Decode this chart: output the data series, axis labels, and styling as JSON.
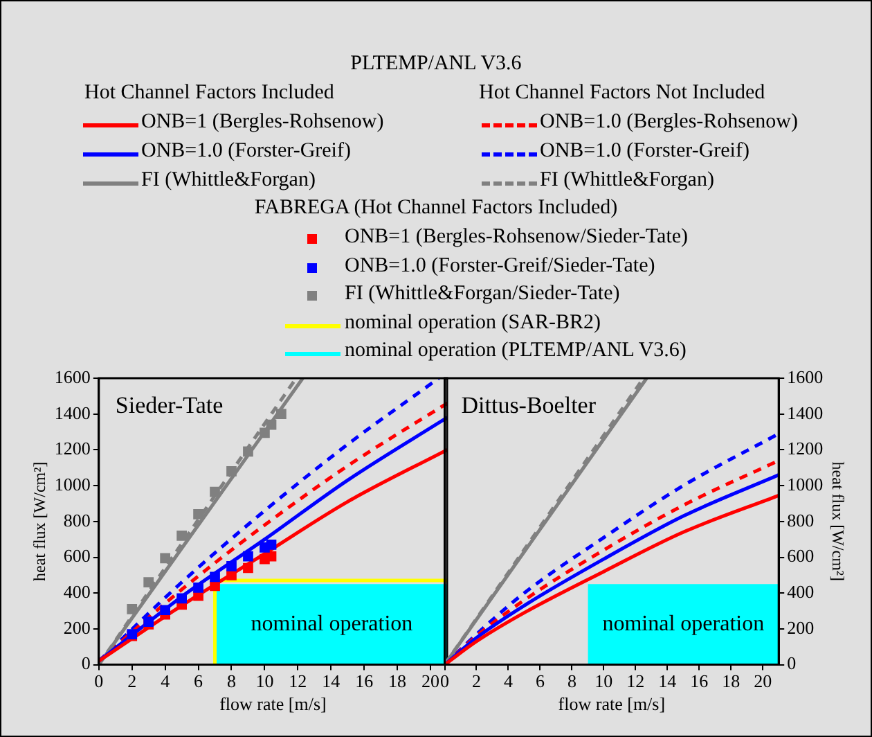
{
  "chart_data": [
    {
      "type": "line",
      "title": "PLTEMP/ANL V3.6",
      "subtitle": "Sieder-Tate",
      "xlabel": "flow rate [m/s]",
      "ylabel": "heat flux [W/cm²]",
      "xlim": [
        0,
        21
      ],
      "xticks": [
        0,
        2,
        4,
        6,
        8,
        10,
        12,
        14,
        16,
        18,
        20
      ],
      "ylim": [
        0,
        1600
      ],
      "yticks": [
        0,
        200,
        400,
        600,
        800,
        1000,
        1200,
        1400,
        1600
      ],
      "legend": "top",
      "grid": false,
      "annotations": [
        "Hot Channel Factors Included",
        "Hot Channel Factors Not Included",
        "FABREGA (Hot Channel Factors Included)",
        "nominal operation"
      ],
      "series": [
        {
          "name": "ONB=1 (Bergles-Rohsenow)",
          "color": "#ff0000",
          "line_style": "solid",
          "marker": "none",
          "x": [
            0,
            5,
            10,
            15,
            21
          ],
          "values": [
            20,
            330,
            620,
            910,
            1200
          ]
        },
        {
          "name": "ONB=1.0 (Forster-Greif)",
          "color": "#0000ff",
          "line_style": "solid",
          "marker": "none",
          "x": [
            0,
            5,
            10,
            15,
            21
          ],
          "values": [
            20,
            380,
            700,
            1030,
            1380
          ]
        },
        {
          "name": "FI (Whittle&Forgan)",
          "color": "#808080",
          "line_style": "solid",
          "marker": "none",
          "x": [
            0,
            6,
            12.3
          ],
          "values": [
            0,
            780,
            1600
          ]
        },
        {
          "name": "ONB=1.0 (Bergles-Rohsenow)",
          "color": "#ff0000",
          "line_style": "dashed",
          "marker": "none",
          "x": [
            0,
            5,
            10,
            15,
            21
          ],
          "values": [
            20,
            420,
            780,
            1110,
            1460
          ]
        },
        {
          "name": "ONB=1.0 (Forster-Greif)",
          "color": "#0000ff",
          "line_style": "dashed",
          "marker": "none",
          "x": [
            0,
            5,
            10,
            15,
            20.5
          ],
          "values": [
            20,
            460,
            860,
            1230,
            1600
          ]
        },
        {
          "name": "FI (Whittle&Forgan)",
          "color": "#808080",
          "line_style": "dashed",
          "marker": "none",
          "x": [
            0,
            6,
            11.9
          ],
          "values": [
            0,
            810,
            1600
          ]
        },
        {
          "name": "ONB=1 (Bergles-Rohsenow/Sieder-Tate)",
          "type": "scatter",
          "color": "#ff0000",
          "marker": "square",
          "x": [
            2,
            3,
            4,
            5,
            6,
            7,
            8,
            9,
            10,
            10.4
          ],
          "values": [
            160,
            225,
            280,
            335,
            385,
            440,
            500,
            540,
            590,
            605
          ]
        },
        {
          "name": "ONB=1.0 (Forster-Greif/Sieder-Tate)",
          "type": "scatter",
          "color": "#0000ff",
          "marker": "square",
          "x": [
            2,
            3,
            4,
            5,
            6,
            7,
            8,
            9,
            10,
            10.4
          ],
          "values": [
            170,
            240,
            305,
            370,
            430,
            490,
            550,
            605,
            655,
            670
          ]
        },
        {
          "name": "FI (Whittle&Forgan/Sieder-Tate)",
          "type": "scatter",
          "color": "#808080",
          "marker": "square",
          "x": [
            2,
            3,
            4,
            5,
            6,
            7,
            8,
            9,
            10,
            10.4,
            11
          ],
          "values": [
            310,
            460,
            595,
            720,
            840,
            965,
            1080,
            1190,
            1295,
            1340,
            1400
          ]
        },
        {
          "name": "nominal operation (SAR-BR2)",
          "color": "#ffff00",
          "line_style": "solid",
          "marker": "none",
          "x": [
            7,
            7,
            21
          ],
          "values": [
            0,
            470,
            470
          ]
        },
        {
          "name": "nominal operation (PLTEMP/ANL V3.6)",
          "type": "area",
          "color": "#00ffff",
          "marker": "none",
          "x": [
            7.1,
            21
          ],
          "values": [
            450,
            450
          ]
        }
      ]
    },
    {
      "type": "line",
      "subtitle": "Dittus-Boelter",
      "xlabel": "flow rate [m/s]",
      "y2label": "heat flux [W/cm²]",
      "xlim": [
        0,
        21
      ],
      "xticks": [
        0,
        2,
        4,
        6,
        8,
        10,
        12,
        14,
        16,
        18,
        20
      ],
      "y2lim": [
        0,
        1600
      ],
      "y2ticks": [
        0,
        200,
        400,
        600,
        800,
        1000,
        1200,
        1400,
        1600
      ],
      "grid": false,
      "annotations": [
        "nominal operation"
      ],
      "series": [
        {
          "type": "area",
          "axis": "y2",
          "color": "#00ffff",
          "marker": "none",
          "x": [
            9,
            21
          ],
          "values": [
            450,
            450
          ]
        },
        {
          "axis": "y2",
          "color": "#ff0000",
          "line_style": "solid",
          "marker": "none",
          "x": [
            0,
            2,
            5,
            10,
            15,
            21
          ],
          "values": [
            0,
            130,
            290,
            520,
            740,
            945
          ]
        },
        {
          "axis": "y2",
          "color": "#0000ff",
          "line_style": "solid",
          "marker": "none",
          "x": [
            0,
            2,
            5,
            10,
            15,
            21
          ],
          "values": [
            0,
            150,
            330,
            590,
            830,
            1060
          ]
        },
        {
          "axis": "y2",
          "color": "#808080",
          "line_style": "solid",
          "marker": "none",
          "x": [
            0,
            6,
            12.7
          ],
          "values": [
            0,
            756,
            1600
          ]
        },
        {
          "axis": "y2",
          "color": "#ff0000",
          "line_style": "dashed",
          "marker": "none",
          "x": [
            0,
            2,
            5,
            10,
            15,
            21
          ],
          "values": [
            0,
            160,
            360,
            640,
            890,
            1140
          ]
        },
        {
          "axis": "y2",
          "color": "#0000ff",
          "line_style": "dashed",
          "marker": "none",
          "x": [
            0,
            2,
            5,
            10,
            15,
            21
          ],
          "values": [
            0,
            170,
            400,
            710,
            1000,
            1290
          ]
        },
        {
          "axis": "y2",
          "color": "#808080",
          "line_style": "dashed",
          "marker": "none",
          "x": [
            0,
            6,
            12.5
          ],
          "values": [
            0,
            770,
            1600
          ]
        }
      ]
    }
  ]
}
